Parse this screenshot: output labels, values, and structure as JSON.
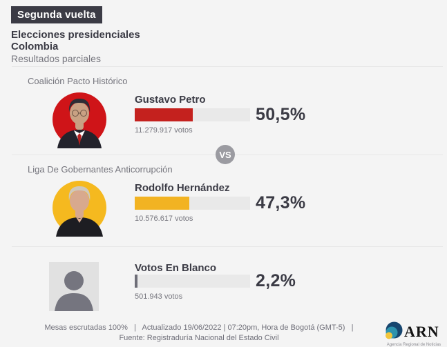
{
  "page": {
    "background": "#f4f4f4",
    "text_dark": "#3b3b45",
    "text_gray": "#75757d"
  },
  "header": {
    "badge": "Segunda vuelta",
    "title_line1": "Elecciones presidenciales",
    "title_line2": "Colombia",
    "subtitle": "Resultados parciales"
  },
  "vs_label": "VS",
  "candidates": [
    {
      "party": "Coalición Pacto Histórico",
      "name": "Gustavo Petro",
      "percent": 50.5,
      "percent_label": "50,5%",
      "votes_label": "11.279.917 votos",
      "color": "#c4211e",
      "photo_circle_color": "#cf1418"
    },
    {
      "party": "Liga De Gobernantes Anticorrupción",
      "name": "Rodolfo Hernández",
      "percent": 47.3,
      "percent_label": "47,3%",
      "votes_label": "10.576.617 votos",
      "color": "#f2b322",
      "photo_circle_color": "#f5b91f"
    },
    {
      "party": "",
      "name": "Votos En Blanco",
      "percent": 2.2,
      "percent_label": "2,2%",
      "votes_label": "501.943 votos",
      "color": "#6e6e78",
      "photo_circle_color": "#e1e1e1"
    }
  ],
  "footer": {
    "line1": "Mesas escrutadas 100%   |   Actualizado 19/06/2022 | 07:20pm, Hora de Bogotá (GMT-5)   |",
    "line2": "Fuente: Registraduría Nacional del Estado Civil",
    "logo_text": "ARN",
    "logo_tagline": "Agencia Regional de Noticias",
    "logo_colors": {
      "navy": "#17466f",
      "teal": "#2e93ad",
      "yellow": "#f2c63d"
    }
  },
  "chart_data": {
    "type": "bar",
    "orientation": "horizontal",
    "title": "Segunda vuelta — Elecciones presidenciales Colombia",
    "subtitle": "Resultados parciales",
    "categories": [
      "Gustavo Petro",
      "Rodolfo Hernández",
      "Votos En Blanco"
    ],
    "values": [
      50.5,
      47.3,
      2.2
    ],
    "value_unit": "%",
    "value_labels": [
      "50,5%",
      "47,3%",
      "2,2%"
    ],
    "votes": [
      11279917,
      10576617,
      501943
    ],
    "parties": [
      "Coalición Pacto Histórico",
      "Liga De Gobernantes Anticorrupción",
      ""
    ],
    "colors": [
      "#c4211e",
      "#f2b322",
      "#6e6e78"
    ],
    "xlim": [
      0,
      100
    ],
    "grid": false,
    "legend": false
  }
}
